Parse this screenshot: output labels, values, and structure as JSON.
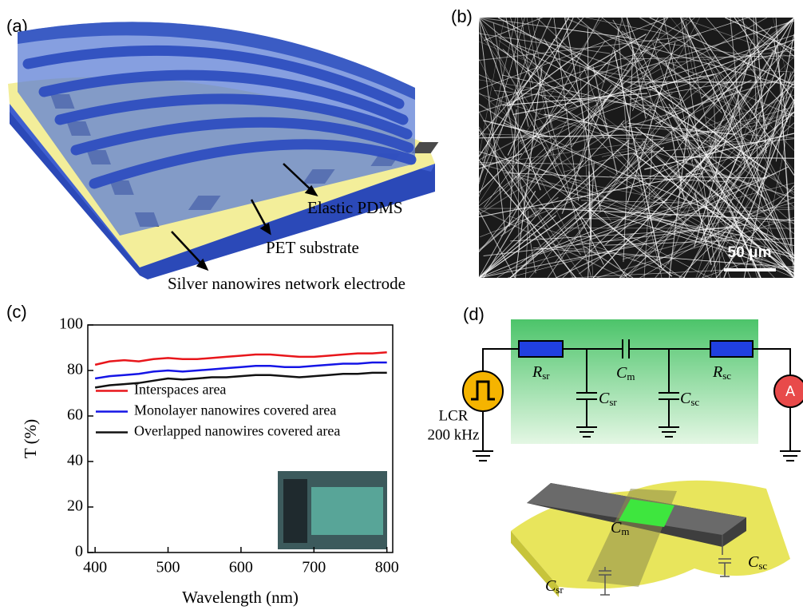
{
  "panel_labels": [
    "(a)",
    "(b)",
    "(c)",
    "(d)"
  ],
  "schematic": {
    "labels": [
      "Elastic PDMS",
      "PET substrate",
      "Silver nanowires network electrode"
    ]
  },
  "micrograph": {
    "scale_bar": "50 μm"
  },
  "chart_data": {
    "type": "line",
    "x_label": "Wavelength (nm)",
    "y_label": "T (%)",
    "x": [
      400,
      420,
      440,
      460,
      480,
      500,
      520,
      540,
      560,
      580,
      600,
      620,
      640,
      660,
      680,
      700,
      720,
      740,
      760,
      780,
      800
    ],
    "series": [
      {
        "name": "Interspaces area",
        "color": "#e8161b",
        "values": [
          82.5,
          84,
          84.5,
          84,
          85,
          85.5,
          85,
          85,
          85.5,
          86,
          86.5,
          87,
          87,
          86.5,
          86,
          86,
          86.5,
          87,
          87.5,
          87.5,
          88
        ]
      },
      {
        "name": "Monolayer nanowires covered area",
        "color": "#1515e6",
        "values": [
          76.5,
          77.5,
          78,
          78.5,
          79.5,
          80,
          79.5,
          80,
          80.5,
          81,
          81.5,
          82,
          82,
          81.5,
          81.5,
          82,
          82.5,
          83,
          83,
          83.5,
          83.5
        ]
      },
      {
        "name": "Overlapped nanowires covered area",
        "color": "#111111",
        "values": [
          72.5,
          73.5,
          74,
          74.5,
          75.5,
          76.5,
          76,
          76.5,
          77,
          77,
          77.5,
          78,
          78,
          77.5,
          77,
          77.5,
          78,
          78.5,
          78.5,
          79,
          79
        ]
      }
    ],
    "xlim": [
      390,
      808
    ],
    "ylim": [
      0,
      100
    ],
    "xticks": [
      400,
      500,
      600,
      700,
      800
    ],
    "yticks": [
      0,
      20,
      40,
      60,
      80,
      100
    ],
    "legend": "center left"
  },
  "circuit": {
    "source": [
      "LCR",
      "200 kHz"
    ],
    "meter": "A",
    "elements": [
      {
        "main": "R",
        "sub": "sr"
      },
      {
        "main": "C",
        "sub": "m"
      },
      {
        "main": "R",
        "sub": "sc"
      },
      {
        "main": "C",
        "sub": "sr"
      },
      {
        "main": "C",
        "sub": "sc"
      }
    ],
    "device": [
      {
        "main": "C",
        "sub": "m"
      },
      {
        "main": "C",
        "sub": "sc"
      },
      {
        "main": "C",
        "sub": "sr"
      }
    ]
  }
}
